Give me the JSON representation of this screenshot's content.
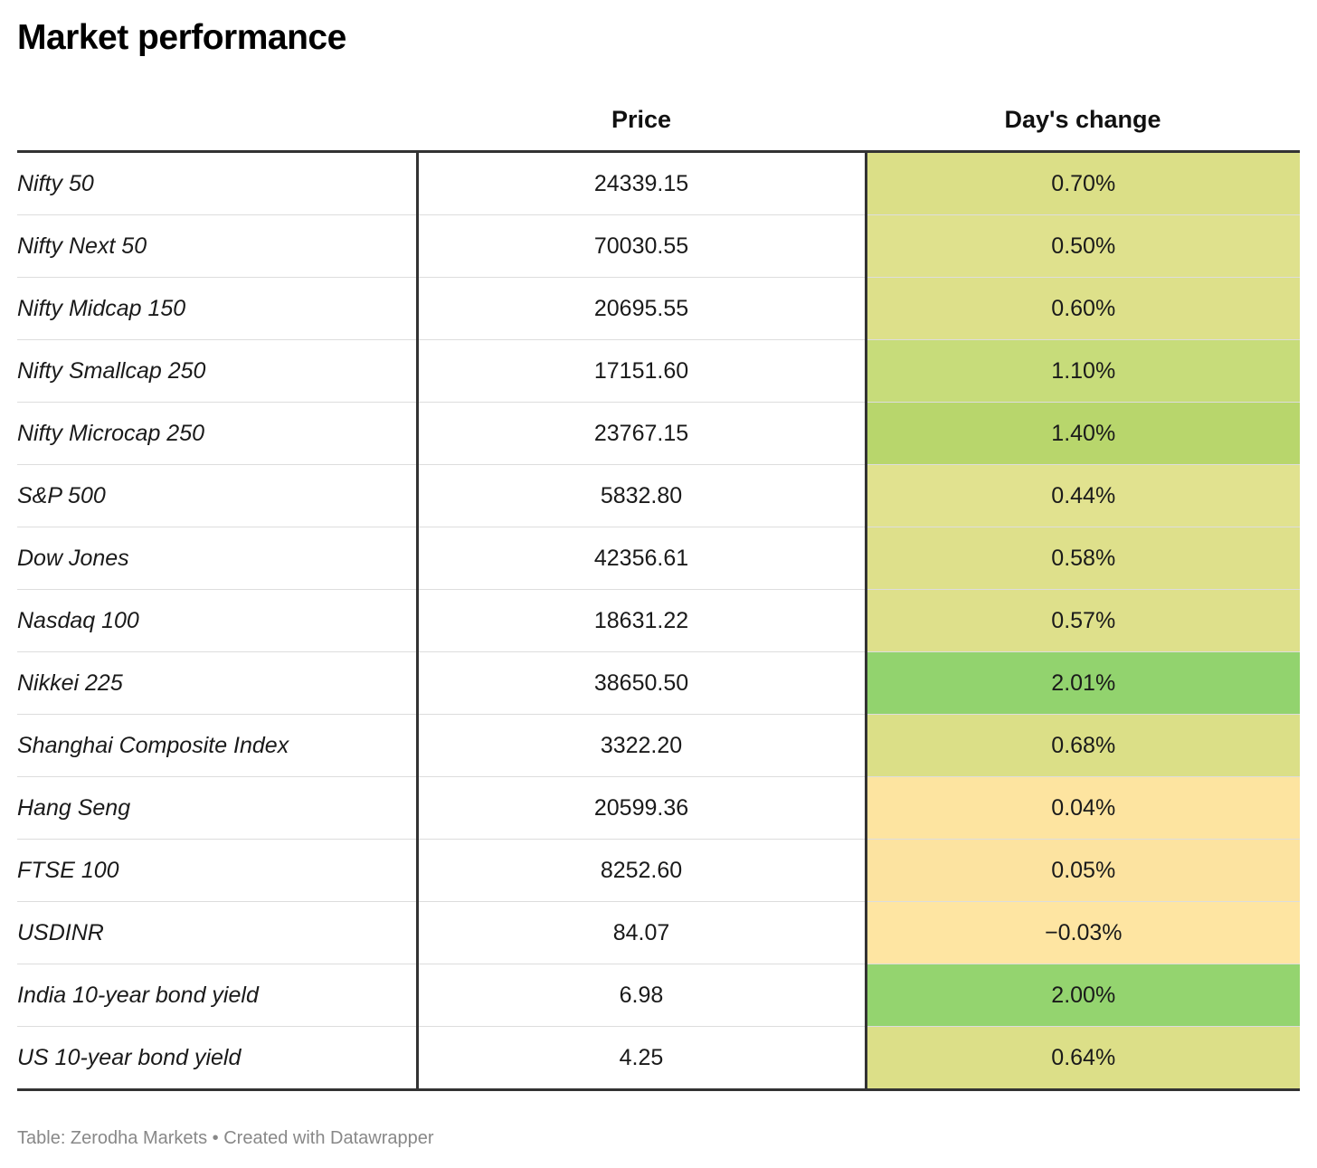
{
  "title": "Market performance",
  "footer": "Table: Zerodha Markets • Created with Datawrapper",
  "chart_data": {
    "type": "table",
    "title": "Market performance",
    "columns": [
      "",
      "Price",
      "Day's change"
    ],
    "rows": [
      {
        "name": "Nifty 50",
        "price": "24339.15",
        "change": "0.70%",
        "change_value": 0.7,
        "color": "#dbdf87"
      },
      {
        "name": "Nifty Next 50",
        "price": "70030.55",
        "change": "0.50%",
        "change_value": 0.5,
        "color": "#dfe18d"
      },
      {
        "name": "Nifty Midcap 150",
        "price": "20695.55",
        "change": "0.60%",
        "change_value": 0.6,
        "color": "#dde08a"
      },
      {
        "name": "Nifty Smallcap 250",
        "price": "17151.60",
        "change": "1.10%",
        "change_value": 1.1,
        "color": "#c7dc7a"
      },
      {
        "name": "Nifty Microcap 250",
        "price": "23767.15",
        "change": "1.40%",
        "change_value": 1.4,
        "color": "#b8d66c"
      },
      {
        "name": "S&P 500",
        "price": "5832.80",
        "change": "0.44%",
        "change_value": 0.44,
        "color": "#e1e28f"
      },
      {
        "name": "Dow Jones",
        "price": "42356.61",
        "change": "0.58%",
        "change_value": 0.58,
        "color": "#dee08b"
      },
      {
        "name": "Nasdaq 100",
        "price": "18631.22",
        "change": "0.57%",
        "change_value": 0.57,
        "color": "#dee08b"
      },
      {
        "name": "Nikkei 225",
        "price": "38650.50",
        "change": "2.01%",
        "change_value": 2.01,
        "color": "#92d36e"
      },
      {
        "name": "Shanghai Composite Index",
        "price": "3322.20",
        "change": "0.68%",
        "change_value": 0.68,
        "color": "#dbdf87"
      },
      {
        "name": "Hang Seng",
        "price": "20599.36",
        "change": "0.04%",
        "change_value": 0.04,
        "color": "#fde4a0"
      },
      {
        "name": "FTSE 100",
        "price": "8252.60",
        "change": "0.05%",
        "change_value": 0.05,
        "color": "#fce3a0"
      },
      {
        "name": "USDINR",
        "price": "84.07",
        "change": "−0.03%",
        "change_value": -0.03,
        "color": "#fee5a2"
      },
      {
        "name": "India 10-year bond yield",
        "price": "6.98",
        "change": "2.00%",
        "change_value": 2.0,
        "color": "#94d46f"
      },
      {
        "name": "US 10-year bond yield",
        "price": "4.25",
        "change": "0.64%",
        "change_value": 0.64,
        "color": "#dcdf88"
      }
    ]
  }
}
